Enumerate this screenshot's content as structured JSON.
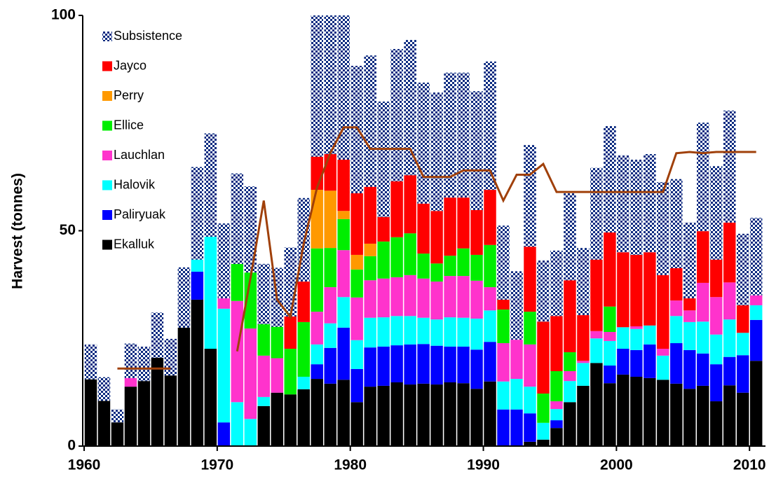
{
  "chart_data": {
    "type": "bar",
    "stacked": true,
    "y_label": "Harvest (tonnes)",
    "x": [
      1960,
      1961,
      1962,
      1963,
      1964,
      1965,
      1966,
      1967,
      1968,
      1969,
      1970,
      1971,
      1972,
      1973,
      1974,
      1975,
      1976,
      1977,
      1978,
      1979,
      1980,
      1981,
      1982,
      1983,
      1984,
      1985,
      1986,
      1987,
      1988,
      1989,
      1990,
      1991,
      1992,
      1993,
      1994,
      1995,
      1996,
      1997,
      1998,
      1999,
      2000,
      2001,
      2002,
      2003,
      2004,
      2005,
      2006,
      2007,
      2008,
      2009,
      2010
    ],
    "xlim": [
      1960,
      2011.2
    ],
    "xticks": [
      1960,
      1970,
      1980,
      1990,
      2000,
      2010
    ],
    "ylim": [
      0,
      100
    ],
    "yticks": [
      0,
      50,
      100
    ],
    "legend": "top-left",
    "series": [
      {
        "name": "Ekalluk",
        "color": "#000000",
        "values": [
          15.5,
          10.5,
          5.5,
          13.8,
          15.1,
          20.5,
          16.4,
          27.5,
          34,
          22.6,
          0,
          0,
          0,
          9.3,
          12.4,
          12,
          13.2,
          15.6,
          14.5,
          15.4,
          10.2,
          13.8,
          14,
          14.8,
          14.3,
          14.5,
          14.3,
          14.8,
          14.6,
          13.3,
          15,
          0,
          0,
          1,
          1.5,
          4.2,
          10.2,
          14,
          19.3,
          14.6,
          16.6,
          16.1,
          15.8,
          15.4,
          14.5,
          13.3,
          14,
          10.4,
          14.1,
          12.4,
          19.8
        ]
      },
      {
        "name": "Paliryuak",
        "color": "#0000ff",
        "values": [
          0,
          0,
          0,
          0,
          0,
          0,
          0,
          0,
          6.5,
          0,
          5.5,
          0,
          0,
          0,
          0,
          0,
          0,
          3.4,
          8.3,
          12.1,
          7.7,
          9.1,
          9.1,
          8.6,
          9.3,
          9.2,
          9,
          8.3,
          8.5,
          9.1,
          9.2,
          8.5,
          8.5,
          6.6,
          0,
          1.8,
          0,
          0,
          0,
          4.1,
          6,
          6.2,
          7.8,
          0,
          9.4,
          9,
          7.5,
          8.6,
          6.6,
          8.7,
          9.5
        ]
      },
      {
        "name": "Halovik",
        "color": "#00ffff",
        "values": [
          0,
          0,
          0,
          0,
          0,
          0,
          0,
          0,
          2.8,
          26,
          26.4,
          10.2,
          6.3,
          2.1,
          0,
          0,
          2.9,
          4.6,
          5.7,
          7.1,
          6.7,
          6.9,
          6.8,
          6.8,
          6.6,
          6.1,
          6.1,
          6.8,
          6.7,
          7.2,
          7.3,
          6.5,
          7.1,
          6.2,
          3.9,
          2.6,
          4.9,
          5.3,
          5.7,
          5.7,
          5,
          4.9,
          4.4,
          5.6,
          6.3,
          6.5,
          7.4,
          6.9,
          8.7,
          5.2,
          3.4
        ]
      },
      {
        "name": "Lauchlan",
        "color": "#ff33cc",
        "values": [
          0,
          0,
          0,
          2,
          0,
          0,
          0,
          0,
          0,
          0,
          2.4,
          23.5,
          21,
          9.6,
          8,
          0,
          0,
          7.6,
          8.4,
          10.9,
          9.9,
          8.7,
          9,
          9,
          9.5,
          9.1,
          8.8,
          9.6,
          9.7,
          8.8,
          5.4,
          8.9,
          9.1,
          9.8,
          0,
          1.8,
          2.3,
          0.5,
          1.7,
          2.1,
          0,
          0.6,
          0,
          1.6,
          3.6,
          2.7,
          9,
          8.7,
          8.6,
          0,
          2.3
        ]
      },
      {
        "name": "Ellice",
        "color": "#00ee00",
        "values": [
          0,
          0,
          0,
          0,
          0,
          0,
          0,
          0,
          0,
          0,
          0,
          8.6,
          13,
          7.3,
          7.3,
          10.6,
          12.7,
          14.7,
          9.1,
          7.2,
          6.5,
          5.6,
          8.6,
          9.3,
          9.7,
          5.8,
          4.2,
          4.7,
          6.4,
          6,
          9.8,
          7.8,
          0,
          7.6,
          6.8,
          7,
          4.4,
          0,
          0,
          5.9,
          0,
          0,
          0,
          0,
          0,
          0,
          0,
          0,
          0,
          0,
          0
        ]
      },
      {
        "name": "Perry",
        "color": "#ff9900",
        "values": [
          0,
          0,
          0,
          0,
          0,
          0,
          0,
          0,
          0,
          0,
          0,
          0,
          0,
          0,
          0,
          0,
          0,
          13.6,
          13.3,
          1.9,
          3.4,
          2.9,
          0,
          0,
          0,
          0,
          0,
          0,
          0,
          0,
          0,
          0,
          0,
          0,
          0,
          0,
          0,
          0,
          0,
          0,
          0,
          0,
          0,
          0,
          0,
          0,
          0,
          0,
          0,
          0,
          0
        ]
      },
      {
        "name": "Jayco",
        "color": "#ff0000",
        "values": [
          0,
          0,
          0,
          0,
          0,
          0,
          0,
          0,
          0,
          0,
          0,
          0,
          0,
          0,
          0,
          7.5,
          9.4,
          7.7,
          8.5,
          11.9,
          14.3,
          13.2,
          5.7,
          13,
          13.5,
          11.6,
          12.2,
          13.5,
          11.8,
          10.4,
          12.8,
          2.3,
          0,
          15.1,
          16.7,
          12.8,
          16.7,
          10.6,
          16.6,
          17.2,
          17.4,
          16.6,
          17,
          17.1,
          7.5,
          2.8,
          12,
          8.7,
          13.9,
          6.4,
          0
        ]
      },
      {
        "name": "Subsistence",
        "color": "#0a2a80",
        "pattern": "checker",
        "values": [
          8.1,
          5.5,
          3,
          8,
          8,
          10.5,
          8.5,
          14,
          21.5,
          24,
          17.4,
          21,
          20,
          14,
          13.7,
          16,
          19.4,
          32.8,
          32.2,
          33.5,
          29.6,
          30.5,
          26.8,
          30.7,
          31.4,
          28.1,
          27.5,
          29,
          29,
          27.6,
          29.8,
          17.2,
          15.9,
          23.6,
          14.2,
          15.2,
          20.2,
          15.6,
          21.3,
          24.7,
          22.5,
          22.1,
          22.8,
          21.6,
          20.7,
          17.6,
          25.2,
          21.7,
          26,
          16.6,
          18
        ]
      }
    ],
    "line": {
      "color": "#a0400a",
      "values": [
        null,
        null,
        18,
        18,
        18,
        18,
        18,
        null,
        null,
        null,
        null,
        22,
        39,
        57,
        34,
        30,
        47,
        60,
        68,
        74,
        74,
        69,
        69,
        69,
        69,
        62.5,
        62.5,
        62.5,
        64,
        64,
        64,
        57,
        63,
        63,
        65.5,
        59,
        59,
        59,
        59,
        59,
        59,
        59,
        59,
        59,
        68,
        68.3,
        68,
        68.3,
        68.3,
        68.3,
        68.3
      ]
    }
  }
}
